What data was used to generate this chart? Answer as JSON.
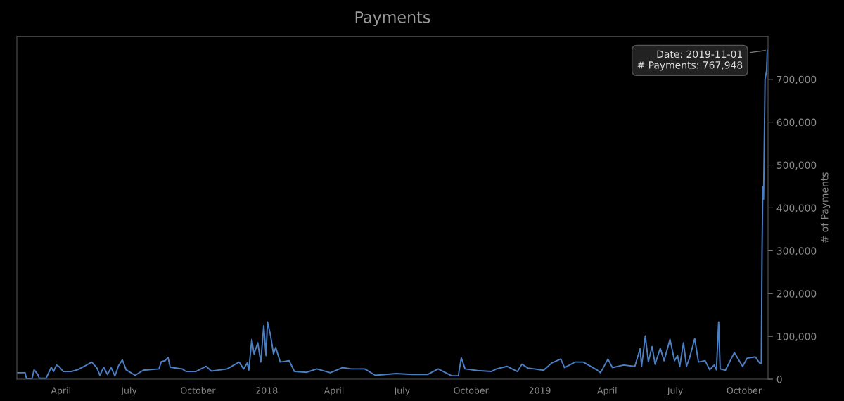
{
  "chart_data": {
    "type": "line",
    "title": "Payments",
    "ylabel": "# of Payments",
    "x": [
      "2017-02-02",
      "2017-02-12",
      "2017-02-14",
      "2017-02-21",
      "2017-02-24",
      "2017-03-01",
      "2017-03-03",
      "2017-03-12",
      "2017-03-19",
      "2017-03-22",
      "2017-03-26",
      "2017-03-29",
      "2017-04-04",
      "2017-04-15",
      "2017-04-23",
      "2017-05-02",
      "2017-05-12",
      "2017-05-19",
      "2017-05-23",
      "2017-05-28",
      "2017-06-02",
      "2017-06-07",
      "2017-06-12",
      "2017-06-17",
      "2017-06-22",
      "2017-06-27",
      "2017-07-09",
      "2017-07-20",
      "2017-08-10",
      "2017-08-13",
      "2017-08-18",
      "2017-08-22",
      "2017-08-25",
      "2017-09-10",
      "2017-09-15",
      "2017-09-28",
      "2017-10-12",
      "2017-10-19",
      "2017-11-09",
      "2017-11-25",
      "2017-12-01",
      "2017-12-06",
      "2017-12-08",
      "2017-12-12",
      "2017-12-15",
      "2017-12-20",
      "2017-12-24",
      "2017-12-28",
      "2017-12-31",
      "2018-01-02",
      "2018-01-06",
      "2018-01-10",
      "2018-01-13",
      "2018-01-19",
      "2018-01-31",
      "2018-02-07",
      "2018-02-23",
      "2018-03-09",
      "2018-03-27",
      "2018-04-12",
      "2018-04-24",
      "2018-05-12",
      "2018-05-26",
      "2018-06-23",
      "2018-07-14",
      "2018-08-04",
      "2018-08-18",
      "2018-09-05",
      "2018-09-14",
      "2018-09-18",
      "2018-09-23",
      "2018-10-10",
      "2018-10-28",
      "2018-11-04",
      "2018-11-18",
      "2018-12-02",
      "2018-12-08",
      "2018-12-16",
      "2019-01-06",
      "2019-01-17",
      "2019-01-29",
      "2019-02-03",
      "2019-02-17",
      "2019-02-28",
      "2019-03-18",
      "2019-03-23",
      "2019-04-02",
      "2019-04-08",
      "2019-04-23",
      "2019-05-08",
      "2019-05-15",
      "2019-05-17",
      "2019-05-22",
      "2019-05-26",
      "2019-05-31",
      "2019-06-04",
      "2019-06-11",
      "2019-06-16",
      "2019-06-24",
      "2019-06-30",
      "2019-07-04",
      "2019-07-07",
      "2019-07-12",
      "2019-07-16",
      "2019-07-20",
      "2019-07-27",
      "2019-08-01",
      "2019-08-10",
      "2019-08-16",
      "2019-08-22",
      "2019-08-25",
      "2019-08-28",
      "2019-08-30",
      "2019-09-06",
      "2019-09-18",
      "2019-09-29",
      "2019-10-05",
      "2019-10-16",
      "2019-10-22",
      "2019-10-24",
      "2019-10-25",
      "2019-10-26",
      "2019-10-27",
      "2019-10-29",
      "2019-10-31",
      "2019-11-01"
    ],
    "series": [
      {
        "color": "#4a7fc4",
        "values": [
          15000,
          15000,
          0,
          0,
          22000,
          11000,
          2000,
          2000,
          28000,
          18000,
          33000,
          30000,
          18000,
          18000,
          22000,
          30000,
          40000,
          26000,
          9000,
          28000,
          11000,
          27000,
          7000,
          32000,
          45000,
          22000,
          9000,
          21000,
          24000,
          41000,
          43000,
          51000,
          28000,
          24000,
          18000,
          18000,
          30000,
          19000,
          24000,
          40000,
          24000,
          38000,
          21000,
          93000,
          59000,
          85000,
          40000,
          125000,
          55000,
          134000,
          103000,
          59000,
          74000,
          40000,
          43000,
          18000,
          16000,
          24000,
          15000,
          27000,
          24000,
          24000,
          9000,
          13000,
          11000,
          11000,
          24000,
          8000,
          8000,
          50000,
          24000,
          20000,
          18000,
          24000,
          30000,
          18000,
          35000,
          26000,
          21000,
          38000,
          47000,
          27000,
          40000,
          40000,
          22000,
          15000,
          47000,
          27000,
          33000,
          30000,
          71000,
          30000,
          101000,
          41000,
          76000,
          35000,
          72000,
          43000,
          93000,
          43000,
          55000,
          30000,
          85000,
          30000,
          49000,
          95000,
          40000,
          43000,
          22000,
          33000,
          22000,
          134000,
          24000,
          21000,
          62000,
          30000,
          49000,
          52000,
          37000,
          37000,
          300000,
          450000,
          420000,
          700000,
          720000,
          767948
        ]
      }
    ],
    "xlim": [
      "2017-02-01",
      "2019-11-02"
    ],
    "xticks": [
      {
        "value": "2017-04-01",
        "label": "April"
      },
      {
        "value": "2017-07-01",
        "label": "July"
      },
      {
        "value": "2017-10-01",
        "label": "October"
      },
      {
        "value": "2018-01-01",
        "label": "2018"
      },
      {
        "value": "2018-04-01",
        "label": "April"
      },
      {
        "value": "2018-07-01",
        "label": "July"
      },
      {
        "value": "2018-10-01",
        "label": "October"
      },
      {
        "value": "2019-01-01",
        "label": "2019"
      },
      {
        "value": "2019-04-01",
        "label": "April"
      },
      {
        "value": "2019-07-01",
        "label": "July"
      },
      {
        "value": "2019-10-01",
        "label": "October"
      }
    ],
    "ylim": [
      0,
      800000
    ],
    "yticks": [
      {
        "value": 0,
        "label": "0"
      },
      {
        "value": 100000,
        "label": "100,000"
      },
      {
        "value": 200000,
        "label": "200,000"
      },
      {
        "value": 300000,
        "label": "300,000"
      },
      {
        "value": 400000,
        "label": "400,000"
      },
      {
        "value": 500000,
        "label": "500,000"
      },
      {
        "value": 600000,
        "label": "600,000"
      },
      {
        "value": 700000,
        "label": "700,000"
      }
    ],
    "annotations": [
      {
        "text": "Date: 2019-11-01\n# Payments: 767,948",
        "x": "2019-11-01",
        "y": 767948
      }
    ],
    "grid": false,
    "legend": false,
    "marker": "none",
    "line_style": "solid"
  }
}
